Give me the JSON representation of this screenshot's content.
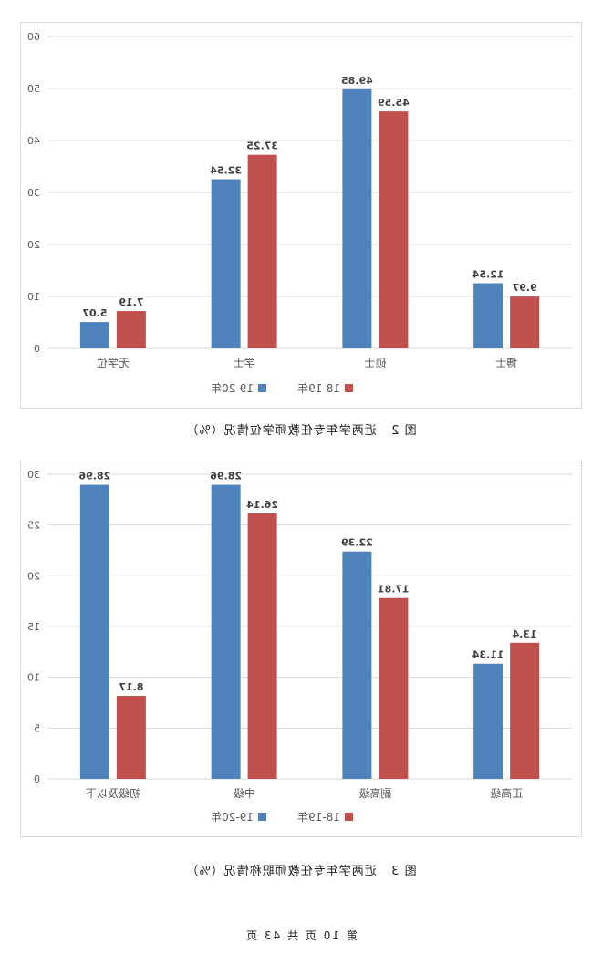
{
  "colors": {
    "series1": "#c0504d",
    "series2": "#4f81bd",
    "grid": "#d9d9d9",
    "axis_text": "#595959",
    "label_text": "#404040"
  },
  "chart_data": [
    {
      "type": "bar",
      "title": "",
      "caption": {
        "fig": "图 2",
        "text": "近两学年专任教师学位情况（%）"
      },
      "categories": [
        "博士",
        "硕士",
        "学士",
        "无学位"
      ],
      "series": [
        {
          "name": "18-19年",
          "values": [
            9.97,
            45.59,
            37.25,
            7.19
          ]
        },
        {
          "name": "19-20年",
          "values": [
            12.54,
            49.85,
            32.54,
            5.07
          ]
        }
      ],
      "yticks": [
        0,
        10,
        20,
        30,
        40,
        50,
        60
      ],
      "ylim": [
        0,
        60
      ],
      "grid": true,
      "legend": "bottom"
    },
    {
      "type": "bar",
      "title": "",
      "caption": {
        "fig": "图 3",
        "text": "近两学年专任教师职称情况（%）"
      },
      "categories": [
        "正高级",
        "副高级",
        "中级",
        "初级及以下"
      ],
      "series": [
        {
          "name": "18-19年",
          "values": [
            13.4,
            17.81,
            26.14,
            8.17
          ]
        },
        {
          "name": "19-20年",
          "values": [
            11.34,
            22.39,
            28.96,
            28.96
          ]
        }
      ],
      "yticks": [
        0,
        5,
        10,
        15,
        20,
        25,
        30
      ],
      "ylim": [
        0,
        30
      ],
      "grid": true,
      "legend": "bottom"
    }
  ],
  "footer": "第 10 页 共 43 页"
}
